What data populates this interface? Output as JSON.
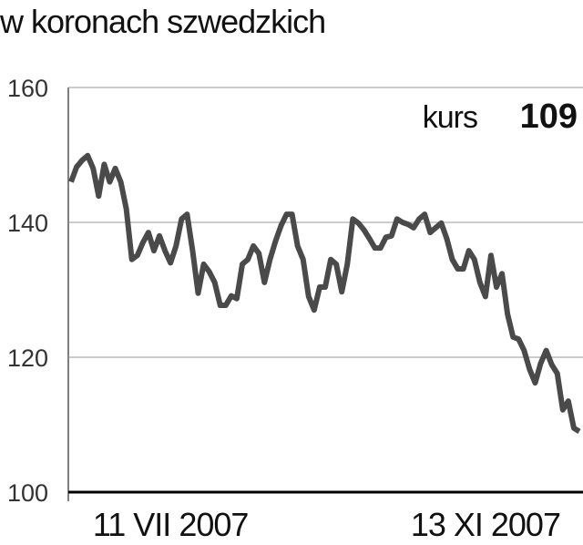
{
  "chart_data": {
    "type": "line",
    "title": "w koronach szwedzkich",
    "annotation_label": "kurs",
    "annotation_value": 109,
    "categories": [
      null,
      null,
      null,
      null,
      null,
      null,
      null,
      null,
      null,
      null,
      null,
      null,
      null,
      null,
      null,
      null,
      null,
      null,
      "11 VII 2007",
      null,
      null,
      null,
      null,
      null,
      null,
      null,
      null,
      null,
      null,
      null,
      null,
      null,
      null,
      null,
      null,
      null,
      null,
      null,
      null,
      null,
      null,
      null,
      null,
      null,
      null,
      null,
      null,
      null,
      null,
      null,
      null,
      null,
      null,
      null,
      null,
      null,
      null,
      null,
      null,
      null,
      null,
      null,
      null,
      null,
      null,
      null,
      null,
      null,
      null,
      null,
      null,
      null,
      null,
      null,
      null,
      "13 XI 2007",
      null,
      null,
      null,
      null,
      null,
      null,
      null,
      null,
      null,
      null,
      null,
      null,
      null,
      null,
      null,
      null,
      null
    ],
    "series": [
      {
        "color": "#4a4a4a",
        "values": [
          146,
          148.2,
          149.2,
          149.9,
          148,
          143.9,
          148.6,
          146,
          148,
          146,
          142,
          134.5,
          135.1,
          137,
          138.5,
          135.8,
          138,
          135.8,
          134,
          136.5,
          140.5,
          141.2,
          135.8,
          129.5,
          133.8,
          132.7,
          131.1,
          127.7,
          127.7,
          129.1,
          128.7,
          133.8,
          134.5,
          136.5,
          135.4,
          131.1,
          134.5,
          137.2,
          139.5,
          141.2,
          141.2,
          136.5,
          134.5,
          129,
          127,
          130.4,
          130.4,
          134.5,
          133.8,
          129.7,
          133.8,
          140.5,
          139.9,
          138.9,
          137.6,
          136.2,
          136.2,
          137.8,
          138,
          140.5,
          140,
          139.7,
          139.2,
          140.5,
          141.2,
          138.5,
          139.2,
          139.9,
          137.6,
          134.5,
          133.1,
          133.1,
          135.8,
          134.5,
          131.1,
          129,
          135.1,
          130.4,
          132.4,
          126.4,
          123,
          122.7,
          121,
          118.2,
          116.2,
          119.1,
          121,
          118.9,
          117.6,
          112.2,
          113.5,
          109.5,
          109
        ]
      }
    ],
    "ylim": [
      100,
      160
    ],
    "yticks": [
      100,
      120,
      140,
      160
    ],
    "grid": true
  }
}
